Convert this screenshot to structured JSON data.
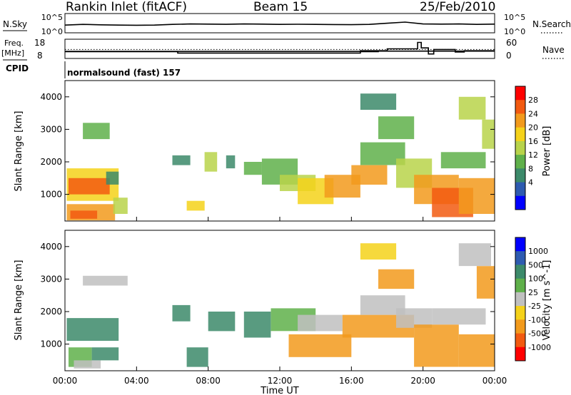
{
  "header": {
    "station": "Rankin Inlet (fitACF)",
    "beam": "Beam 15",
    "date": "25/Feb/2010"
  },
  "colors": {
    "power_scale": [
      "#0000ff",
      "#2e5bb0",
      "#3c8a6a",
      "#5fb04a",
      "#b8d34a",
      "#f5d21a",
      "#f29a1c",
      "#f25a10",
      "#ff0000"
    ],
    "velocity_scale": [
      "#0000ff",
      "#2e5bb0",
      "#3c8a6a",
      "#5fb04a",
      "#c0c0c0",
      "#f5d21a",
      "#f29a1c",
      "#f25a10",
      "#ff0000"
    ]
  },
  "chart_data": [
    {
      "type": "line",
      "id": "nsky-nsearch",
      "left_label": "N.Sky",
      "right_label": "N.Search",
      "left_ticks": [
        "10^5",
        "10^0"
      ],
      "right_ticks": [
        "10^5",
        "10^0"
      ],
      "left_tick_values": [
        100000,
        1
      ],
      "yscale": "log",
      "ylim": [
        1,
        100000
      ],
      "series": [
        {
          "style": "solid",
          "x": [
            0,
            1,
            2,
            3,
            4,
            5,
            6,
            7,
            8,
            9,
            10,
            11,
            12,
            13,
            14,
            15,
            16,
            17,
            18,
            19,
            20,
            21,
            22,
            23,
            24
          ],
          "values": [
            100,
            150,
            120,
            100,
            90,
            100,
            150,
            200,
            180,
            160,
            200,
            180,
            150,
            170,
            150,
            140,
            130,
            150,
            300,
            600,
            200,
            180,
            200,
            150,
            180
          ]
        },
        {
          "style": "dotted",
          "x": [],
          "values": []
        }
      ]
    },
    {
      "type": "line",
      "id": "freq-nave",
      "left_label_lines": [
        "Freq.",
        "[MHz]"
      ],
      "right_label": "Nave",
      "left_ticks": [
        18,
        8
      ],
      "right_ticks": [
        60,
        0
      ],
      "ylim_left": [
        8,
        18
      ],
      "ylim_right": [
        0,
        60
      ],
      "series": [
        {
          "name": "Freq.",
          "style": "solid",
          "axis": "left",
          "x": [
            0,
            6.3,
            6.3,
            16.5,
            16.5,
            17.5,
            17.5,
            24
          ],
          "values": [
            11.5,
            11.5,
            10.8,
            10.8,
            11.5,
            11.5,
            11.8,
            11.8
          ]
        },
        {
          "name": "Nave",
          "style": "solid",
          "axis": "right",
          "x": [
            0,
            16.5,
            16.5,
            18.0,
            18.0,
            19.7,
            19.7,
            19.9,
            19.9,
            20.3,
            20.3,
            20.6,
            20.6,
            21.8,
            21.8,
            22.3,
            22.3,
            24
          ],
          "values": [
            22,
            22,
            24,
            24,
            30,
            30,
            50,
            50,
            33,
            33,
            14,
            14,
            28,
            28,
            20,
            20,
            24,
            24
          ]
        },
        {
          "name": "Nave dotted",
          "style": "dotted",
          "axis": "right",
          "x": [
            0,
            24
          ],
          "values": [
            28,
            28
          ]
        }
      ]
    },
    {
      "type": "line",
      "id": "cpid",
      "left_label": "CPID",
      "annotation": "normalsound (fast) 157"
    },
    {
      "type": "heatmap",
      "id": "power",
      "ylabel": "Slant Range [km]",
      "ylim": [
        180,
        4500
      ],
      "yticks": [
        1000,
        2000,
        3000,
        4000
      ],
      "xlim": [
        0,
        24
      ],
      "colorbar_label": "Power [dB]",
      "colorbar_ticks": [
        28,
        24,
        20,
        16,
        12,
        8,
        4
      ],
      "colorbar_range": [
        0,
        32
      ],
      "patches": [
        {
          "x": [
            0.1,
            3.0
          ],
          "y": [
            800,
            1800
          ],
          "v": 20
        },
        {
          "x": [
            0.2,
            2.5
          ],
          "y": [
            1000,
            1500
          ],
          "v": 28
        },
        {
          "x": [
            2.3,
            3.0
          ],
          "y": [
            1300,
            1700
          ],
          "v": 8
        },
        {
          "x": [
            0.1,
            2.8
          ],
          "y": [
            200,
            700
          ],
          "v": 24
        },
        {
          "x": [
            0.3,
            1.8
          ],
          "y": [
            250,
            500
          ],
          "v": 28
        },
        {
          "x": [
            1.0,
            2.5
          ],
          "y": [
            2700,
            3200
          ],
          "v": 12
        },
        {
          "x": [
            2.7,
            3.5
          ],
          "y": [
            400,
            900
          ],
          "v": 16
        },
        {
          "x": [
            6.0,
            7.0
          ],
          "y": [
            1900,
            2200
          ],
          "v": 8
        },
        {
          "x": [
            6.8,
            7.8
          ],
          "y": [
            500,
            800
          ],
          "v": 20
        },
        {
          "x": [
            7.8,
            8.5
          ],
          "y": [
            1700,
            2300
          ],
          "v": 16
        },
        {
          "x": [
            9.0,
            9.5
          ],
          "y": [
            1800,
            2200
          ],
          "v": 8
        },
        {
          "x": [
            10.0,
            11.0
          ],
          "y": [
            1600,
            2000
          ],
          "v": 12
        },
        {
          "x": [
            11.0,
            13.0
          ],
          "y": [
            1300,
            2100
          ],
          "v": 12
        },
        {
          "x": [
            12.0,
            14.0
          ],
          "y": [
            1100,
            1600
          ],
          "v": 16
        },
        {
          "x": [
            13.0,
            15.0
          ],
          "y": [
            700,
            1500
          ],
          "v": 20
        },
        {
          "x": [
            14.5,
            16.5
          ],
          "y": [
            900,
            1600
          ],
          "v": 24
        },
        {
          "x": [
            16.0,
            18.0
          ],
          "y": [
            1300,
            1900
          ],
          "v": 24
        },
        {
          "x": [
            16.5,
            19.0
          ],
          "y": [
            1900,
            2600
          ],
          "v": 12
        },
        {
          "x": [
            16.5,
            18.5
          ],
          "y": [
            3600,
            4100
          ],
          "v": 8
        },
        {
          "x": [
            17.5,
            19.5
          ],
          "y": [
            2700,
            3400
          ],
          "v": 12
        },
        {
          "x": [
            18.5,
            20.5
          ],
          "y": [
            1200,
            2100
          ],
          "v": 16
        },
        {
          "x": [
            19.5,
            22.0
          ],
          "y": [
            700,
            1600
          ],
          "v": 24
        },
        {
          "x": [
            20.5,
            22.8
          ],
          "y": [
            300,
            1200
          ],
          "v": 28
        },
        {
          "x": [
            22.0,
            24.0
          ],
          "y": [
            400,
            1500
          ],
          "v": 24
        },
        {
          "x": [
            21.0,
            23.5
          ],
          "y": [
            1800,
            2300
          ],
          "v": 12
        },
        {
          "x": [
            22.0,
            23.5
          ],
          "y": [
            3300,
            4000
          ],
          "v": 16
        },
        {
          "x": [
            23.3,
            24.0
          ],
          "y": [
            2400,
            3300
          ],
          "v": 16
        }
      ]
    },
    {
      "type": "heatmap",
      "id": "velocity",
      "ylabel": "Slant Range [km]",
      "ylim": [
        180,
        4500
      ],
      "yticks": [
        1000,
        2000,
        3000,
        4000
      ],
      "xlim": [
        0,
        24
      ],
      "xticks": [
        "00:00",
        "04:00",
        "08:00",
        "12:00",
        "16:00",
        "20:00",
        "00:00"
      ],
      "xtick_values": [
        0,
        4,
        8,
        12,
        16,
        20,
        24
      ],
      "xlabel": "Time UT",
      "colorbar_label": "Velocity [m s^-1]",
      "colorbar_ticks": [
        "1000",
        "500",
        "100",
        "25",
        "-25",
        "-100",
        "-500",
        "-1000"
      ],
      "patches": [
        {
          "x": [
            0.1,
            3.0
          ],
          "y": [
            1100,
            1800
          ],
          "v": 150
        },
        {
          "x": [
            0.2,
            1.5
          ],
          "y": [
            300,
            900
          ],
          "v": 80
        },
        {
          "x": [
            0.5,
            2.0
          ],
          "y": [
            250,
            500
          ],
          "v": 0
        },
        {
          "x": [
            1.0,
            3.5
          ],
          "y": [
            2800,
            3100
          ],
          "v": 0
        },
        {
          "x": [
            1.5,
            3.0
          ],
          "y": [
            500,
            900
          ],
          "v": 120
        },
        {
          "x": [
            6.0,
            7.0
          ],
          "y": [
            1700,
            2200
          ],
          "v": 300
        },
        {
          "x": [
            6.8,
            8.0
          ],
          "y": [
            300,
            900
          ],
          "v": 150
        },
        {
          "x": [
            8.0,
            9.5
          ],
          "y": [
            1400,
            2000
          ],
          "v": 400
        },
        {
          "x": [
            10.0,
            11.5
          ],
          "y": [
            1200,
            2000
          ],
          "v": 200
        },
        {
          "x": [
            11.5,
            14.0
          ],
          "y": [
            1400,
            2100
          ],
          "v": 50
        },
        {
          "x": [
            12.5,
            16.0
          ],
          "y": [
            600,
            1300
          ],
          "v": -300
        },
        {
          "x": [
            13.0,
            15.5
          ],
          "y": [
            1400,
            1900
          ],
          "v": 0
        },
        {
          "x": [
            15.5,
            19.5
          ],
          "y": [
            1200,
            1900
          ],
          "v": -400
        },
        {
          "x": [
            16.5,
            19.0
          ],
          "y": [
            1900,
            2500
          ],
          "v": 0
        },
        {
          "x": [
            16.5,
            18.5
          ],
          "y": [
            3600,
            4100
          ],
          "v": -60
        },
        {
          "x": [
            17.5,
            19.5
          ],
          "y": [
            2700,
            3300
          ],
          "v": -200
        },
        {
          "x": [
            18.5,
            20.5
          ],
          "y": [
            1500,
            2100
          ],
          "v": 0
        },
        {
          "x": [
            19.5,
            22.0
          ],
          "y": [
            300,
            1600
          ],
          "v": -400
        },
        {
          "x": [
            20.5,
            23.5
          ],
          "y": [
            1600,
            2100
          ],
          "v": 0
        },
        {
          "x": [
            22.0,
            24.0
          ],
          "y": [
            300,
            1300
          ],
          "v": -350
        },
        {
          "x": [
            22.0,
            23.8
          ],
          "y": [
            3400,
            4100
          ],
          "v": 0
        },
        {
          "x": [
            23.0,
            24.0
          ],
          "y": [
            2400,
            3400
          ],
          "v": -200
        }
      ]
    }
  ]
}
